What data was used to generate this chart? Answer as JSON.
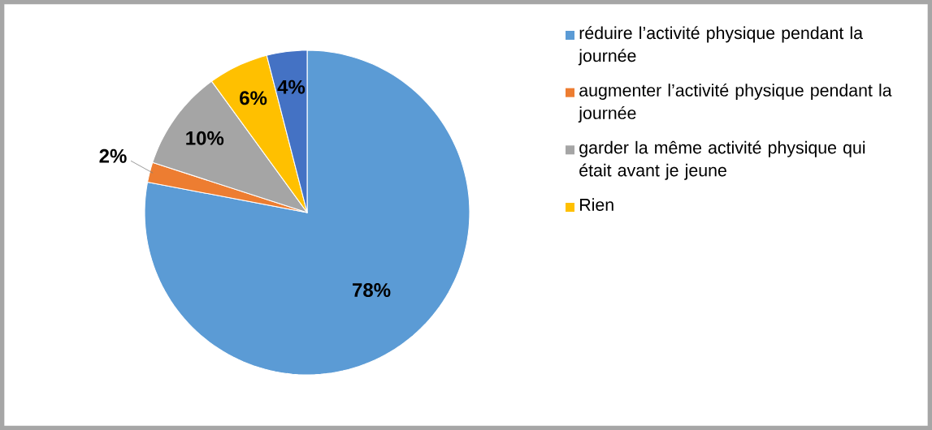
{
  "chart_data": {
    "type": "pie",
    "categories": [
      "réduire l’activité physique pendant la journée",
      "augmenter l’activité physique pendant la journée",
      "garder la même activité physique qui était avant je jeune",
      "Rien",
      null
    ],
    "values": [
      78,
      2,
      10,
      6,
      4
    ],
    "value_labels": [
      "78%",
      "2%",
      "10%",
      "6%",
      "4%"
    ],
    "colors": [
      "#5b9bd5",
      "#ed7d31",
      "#a5a5a5",
      "#ffc000",
      "#4472c4"
    ],
    "legend": "right"
  }
}
